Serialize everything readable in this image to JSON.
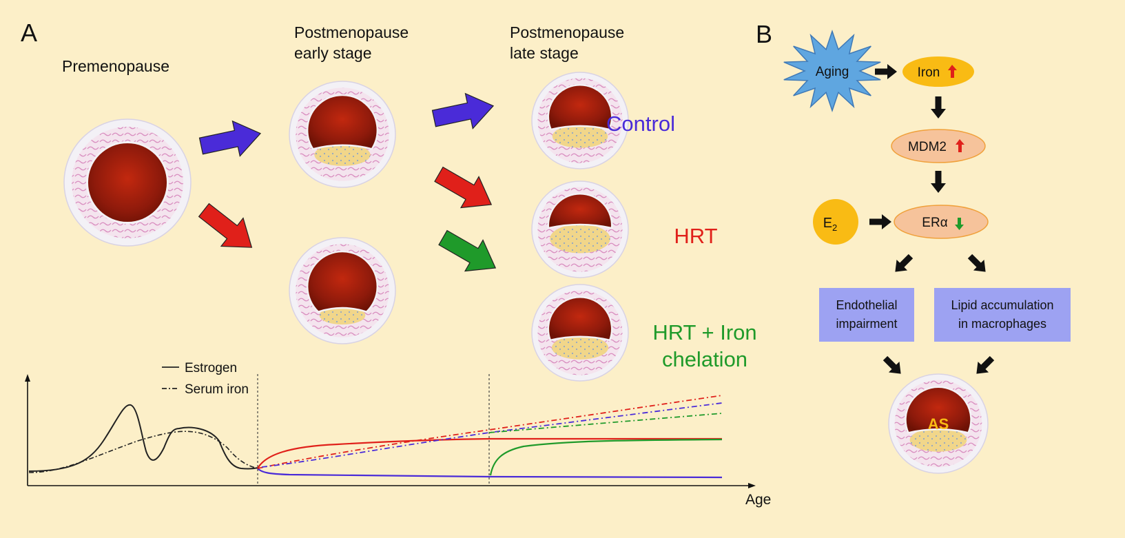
{
  "panel_a": {
    "letter": "A",
    "stages": {
      "premenopause": "Premenopause",
      "post_early_1": "Postmenopause",
      "post_early_2": "early stage",
      "post_late_1": "Postmenopause",
      "post_late_2": "late stage"
    },
    "groups": {
      "control": "Control",
      "hrt": "HRT",
      "hrt_iron_1": "HRT + Iron",
      "hrt_iron_2": "chelation"
    },
    "legend": {
      "estrogen": "Estrogen",
      "serum_iron": "Serum iron"
    },
    "axis": {
      "x_label": "Age"
    }
  },
  "panel_b": {
    "letter": "B",
    "nodes": {
      "aging": "Aging",
      "iron": "Iron",
      "mdm2": "MDM2",
      "e2_base": "E",
      "e2_sub": "2",
      "er_alpha": "ERα",
      "endothelial_1": "Endothelial",
      "endothelial_2": "impairment",
      "lipid_1": "Lipid accumulation",
      "lipid_2": "in macrophages",
      "as": "AS"
    }
  },
  "colors": {
    "background": "#fcefc8",
    "control": "#4a2bd8",
    "hrt": "#e0201a",
    "hrt_iron": "#1f9a2a",
    "node_yellow": "#f9bb14",
    "node_salmon": "#f6c39b",
    "node_blue": "#9da2f2",
    "aging_star": "#5fa6e0",
    "lumen": "#8e1a0b",
    "plaque": "#f1d68a"
  }
}
